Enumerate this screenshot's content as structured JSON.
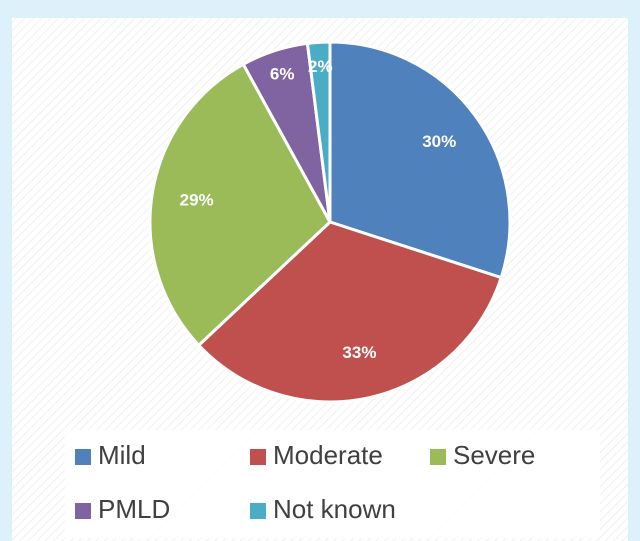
{
  "chart_data": {
    "type": "pie",
    "categories": [
      "Mild",
      "Moderate",
      "Severe",
      "PMLD",
      "Not known"
    ],
    "values": [
      30,
      33,
      29,
      6,
      2
    ],
    "value_labels": [
      "30%",
      "33%",
      "29%",
      "6%",
      "2%"
    ],
    "colors": [
      "#4f81bd",
      "#c0504d",
      "#9bbb59",
      "#8064a2",
      "#4bacc6"
    ],
    "legend": "bottom"
  }
}
